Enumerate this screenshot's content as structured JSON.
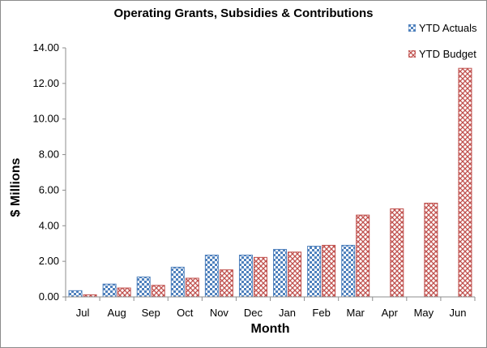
{
  "chart_data": {
    "type": "bar",
    "title": "Operating Grants, Subsidies & Contributions",
    "xlabel": "Month",
    "ylabel": "$ Millions",
    "ylim": [
      0,
      14
    ],
    "yticks": [
      "0.00",
      "2.00",
      "4.00",
      "6.00",
      "8.00",
      "10.00",
      "12.00",
      "14.00"
    ],
    "grid": false,
    "legend_position": "top-right",
    "categories": [
      "Jul",
      "Aug",
      "Sep",
      "Oct",
      "Nov",
      "Dec",
      "Jan",
      "Feb",
      "Mar",
      "Apr",
      "May",
      "Jun"
    ],
    "series": [
      {
        "name": "YTD Actuals",
        "color": "#4f81bd",
        "pattern": "checkerboard",
        "values": [
          0.35,
          0.72,
          1.12,
          1.67,
          2.35,
          2.35,
          2.67,
          2.85,
          2.9,
          null,
          null,
          null
        ]
      },
      {
        "name": "YTD Budget",
        "color": "#c0504d",
        "pattern": "diagonal-weave",
        "values": [
          0.12,
          0.5,
          0.65,
          1.05,
          1.52,
          2.22,
          2.52,
          2.9,
          4.6,
          4.95,
          5.27,
          12.85
        ]
      }
    ]
  }
}
